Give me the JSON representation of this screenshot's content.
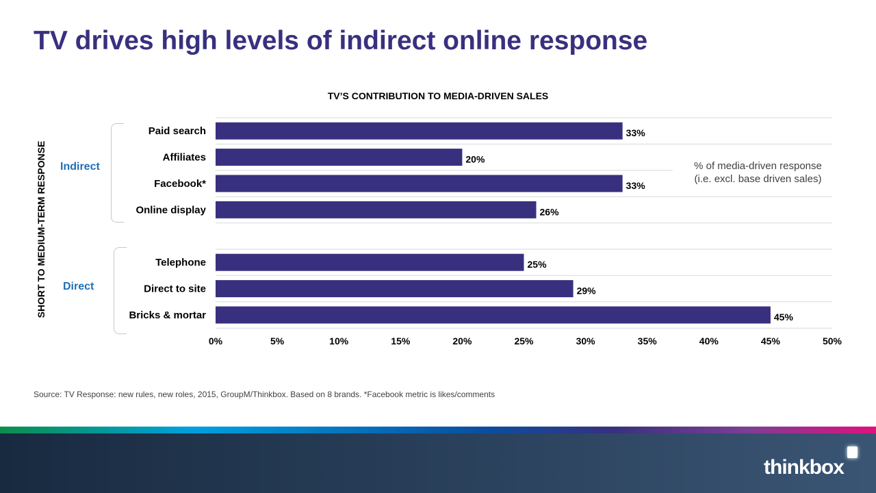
{
  "title": "TV drives high levels of indirect online response",
  "vertical_label": "SHORT TO MEDIUM-TERM RESPONSE",
  "groups": {
    "indirect": "Indirect",
    "direct": "Direct"
  },
  "note": {
    "line1": "% of media-driven response",
    "line2": "(i.e. excl. base driven sales)"
  },
  "source": "Source: TV Response: new rules, new roles, 2015, GroupM/Thinkbox.  Based on 8 brands. *Facebook metric is likes/comments",
  "logo": "thinkbox",
  "colors": {
    "bar": "#38307f",
    "title": "#38307f",
    "group": "#1f6fb5"
  },
  "chart_data": {
    "type": "bar",
    "orientation": "horizontal",
    "title": "TV’S CONTRIBUTION TO MEDIA-DRIVEN SALES",
    "categories": [
      "Paid search",
      "Affiliates",
      "Facebook*",
      "Online display",
      "Telephone",
      "Direct to site",
      "Bricks & mortar"
    ],
    "group_of": [
      "Indirect",
      "Indirect",
      "Indirect",
      "Indirect",
      "Direct",
      "Direct",
      "Direct"
    ],
    "values": [
      33,
      20,
      33,
      26,
      25,
      29,
      45
    ],
    "data_labels": [
      "33%",
      "20%",
      "33%",
      "26%",
      "25%",
      "29%",
      "45%"
    ],
    "xlim": [
      0,
      50
    ],
    "xticks": [
      0,
      5,
      10,
      15,
      20,
      25,
      30,
      35,
      40,
      45,
      50
    ],
    "xtick_labels": [
      "0%",
      "5%",
      "10%",
      "15%",
      "20%",
      "25%",
      "30%",
      "35%",
      "40%",
      "45%",
      "50%"
    ],
    "grid": true,
    "xlabel": "",
    "ylabel": ""
  }
}
